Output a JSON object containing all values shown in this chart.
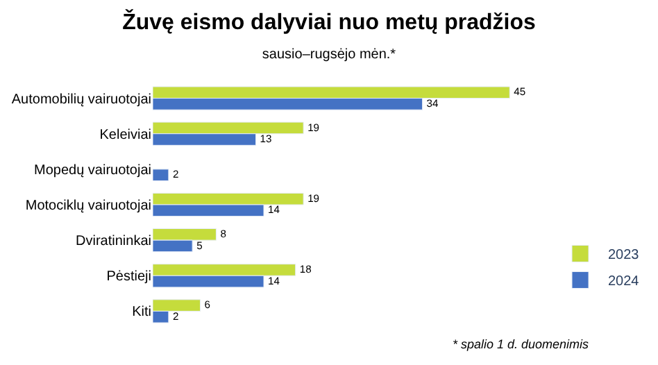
{
  "chart_data": {
    "type": "bar",
    "orientation": "horizontal",
    "title": "Žuvę eismo dalyviai nuo metų pradžios",
    "subtitle": "sausio–rugsėjo mėn.*",
    "categories": [
      "Automobilių vairuotojai",
      "Keleiviai",
      "Mopedų vairuotojai",
      "Motociklų vairuotojai",
      "Dviratininkai",
      "Pėstieji",
      "Kiti"
    ],
    "series": [
      {
        "name": "2023",
        "color": "#c5dc3c",
        "values": [
          45,
          19,
          null,
          19,
          8,
          18,
          6
        ]
      },
      {
        "name": "2024",
        "color": "#4472c4",
        "values": [
          34,
          13,
          2,
          14,
          5,
          14,
          2
        ]
      }
    ],
    "data_labels": true,
    "legend": "right",
    "tick_labels": "y",
    "annotations": [
      "* spalio 1 d. duomenimis"
    ]
  }
}
